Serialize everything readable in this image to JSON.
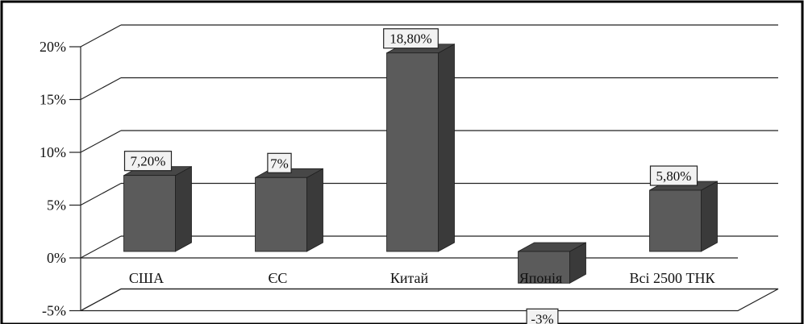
{
  "chart_data": {
    "type": "bar",
    "style": "3d-column",
    "categories": [
      "США",
      "ЄС",
      "Китай",
      "Японія",
      "Всі 2500 ТНК"
    ],
    "values": [
      7.2,
      7.0,
      18.8,
      -3.0,
      5.8
    ],
    "data_labels": [
      "7,20%",
      "7%",
      "18,80%",
      "-3%",
      "5,80%"
    ],
    "y_ticks": [
      -5,
      0,
      5,
      10,
      15,
      20
    ],
    "y_tick_labels": [
      "-5%",
      "0%",
      "5%",
      "10%",
      "15%",
      "20%"
    ],
    "ylim": [
      -5,
      20
    ],
    "grid": true,
    "legend": "none",
    "colors": {
      "bar_front": "#5b5b5b",
      "bar_side": "#3a3a3a",
      "bar_top": "#474747",
      "grid": "#222222",
      "frame": "#000000"
    }
  }
}
